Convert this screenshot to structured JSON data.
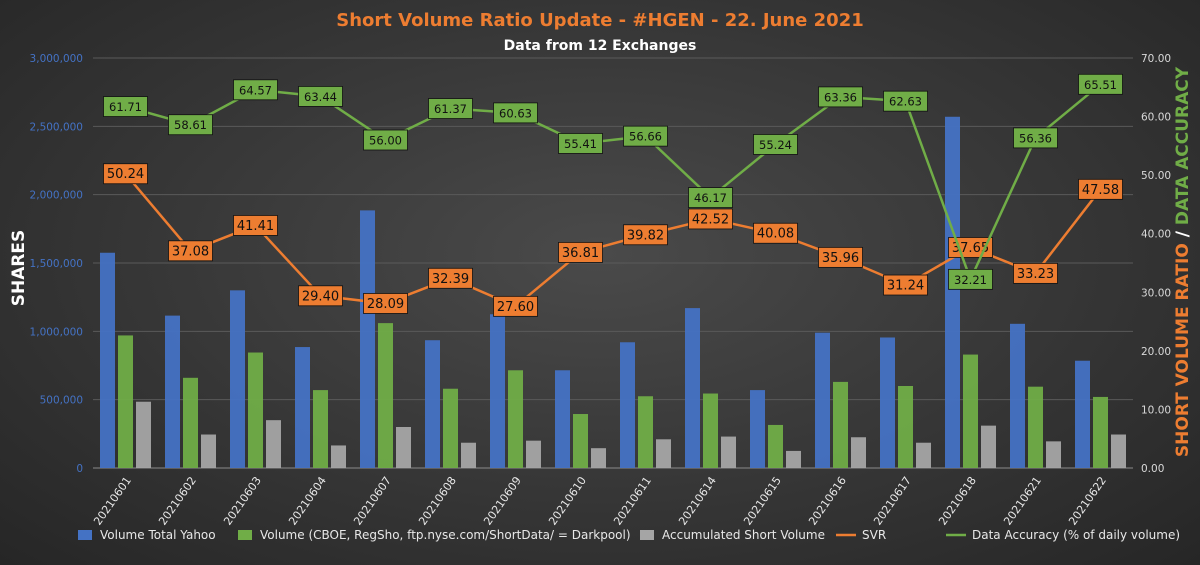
{
  "chart_data": {
    "type": "bar",
    "title": "Short Volume Ratio Update - #HGEN - 22. June 2021",
    "subtitle": "Data from 12 Exchanges",
    "ylabel": "SHARES",
    "y2label_part1": "SHORT VOLUME RATIO",
    "y2label_sep": " / ",
    "y2label_part2": "DATA ACCURACY",
    "ylim": [
      0,
      3000000
    ],
    "y2lim": [
      0,
      70
    ],
    "yticks": [
      "0",
      "500,000",
      "1,000,000",
      "1,500,000",
      "2,000,000",
      "2,500,000",
      "3,000,000"
    ],
    "y2ticks": [
      "0.00",
      "10.00",
      "20.00",
      "30.00",
      "40.00",
      "50.00",
      "60.00",
      "70.00"
    ],
    "categories": [
      "20210601",
      "20210602",
      "20210603",
      "20210604",
      "20210607",
      "20210608",
      "20210609",
      "20210610",
      "20210611",
      "20210614",
      "20210615",
      "20210616",
      "20210617",
      "20210618",
      "20210621",
      "20210622"
    ],
    "series": [
      {
        "name": "Volume Total Yahoo",
        "kind": "bar",
        "color": "#4472c4",
        "values": [
          1575000,
          1115000,
          1300000,
          885000,
          1885000,
          935000,
          1125000,
          715000,
          920000,
          1170000,
          570000,
          990000,
          955000,
          2570000,
          1055000,
          785000
        ]
      },
      {
        "name": "Volume (CBOE, RegSho, ftp.nyse.com/ShortData/ = Darkpool)",
        "kind": "bar",
        "color": "#70ad47",
        "values": [
          970000,
          660000,
          845000,
          570000,
          1060000,
          580000,
          715000,
          395000,
          525000,
          545000,
          315000,
          630000,
          600000,
          830000,
          595000,
          520000
        ]
      },
      {
        "name": "Accumulated Short Volume",
        "kind": "bar",
        "color": "#a5a5a5",
        "values": [
          485000,
          245000,
          350000,
          165000,
          300000,
          185000,
          200000,
          145000,
          210000,
          230000,
          125000,
          225000,
          185000,
          310000,
          195000,
          245000
        ]
      },
      {
        "name": "SVR",
        "kind": "line",
        "axis": "right",
        "color": "#ed7d31",
        "values": [
          50.24,
          37.08,
          41.41,
          29.4,
          28.09,
          32.39,
          27.6,
          36.81,
          39.82,
          42.52,
          40.08,
          35.96,
          31.24,
          37.65,
          33.23,
          47.58
        ],
        "labels": [
          "50.24",
          "37.08",
          "41.41",
          "29.40",
          "28.09",
          "32.39",
          "27.60",
          "36.81",
          "39.82",
          "42.52",
          "40.08",
          "35.96",
          "31.24",
          "37.65",
          "33.23",
          "47.58"
        ]
      },
      {
        "name": "Data Accuracy (% of daily volume)",
        "kind": "line",
        "axis": "right",
        "color": "#70ad47",
        "values": [
          61.71,
          58.61,
          64.57,
          63.44,
          56.0,
          61.37,
          60.63,
          55.41,
          56.66,
          46.17,
          55.24,
          63.36,
          62.63,
          32.21,
          56.36,
          65.51
        ],
        "labels": [
          "61.71",
          "58.61",
          "64.57",
          "63.44",
          "56.00",
          "61.37",
          "60.63",
          "55.41",
          "56.66",
          "46.17",
          "55.24",
          "63.36",
          "62.63",
          "32.21",
          "56.36",
          "65.51"
        ]
      }
    ],
    "colors": {
      "title": "#ed7d31",
      "subtitle": "#ffffff",
      "left_axis": "#4472c4",
      "right_axis": "#d9d9d9",
      "grid": "#5a5a5a",
      "svr_label_bg": "#ed7d31",
      "acc_label_bg": "#70ad47"
    },
    "legend_position": "bottom",
    "grid": true
  }
}
